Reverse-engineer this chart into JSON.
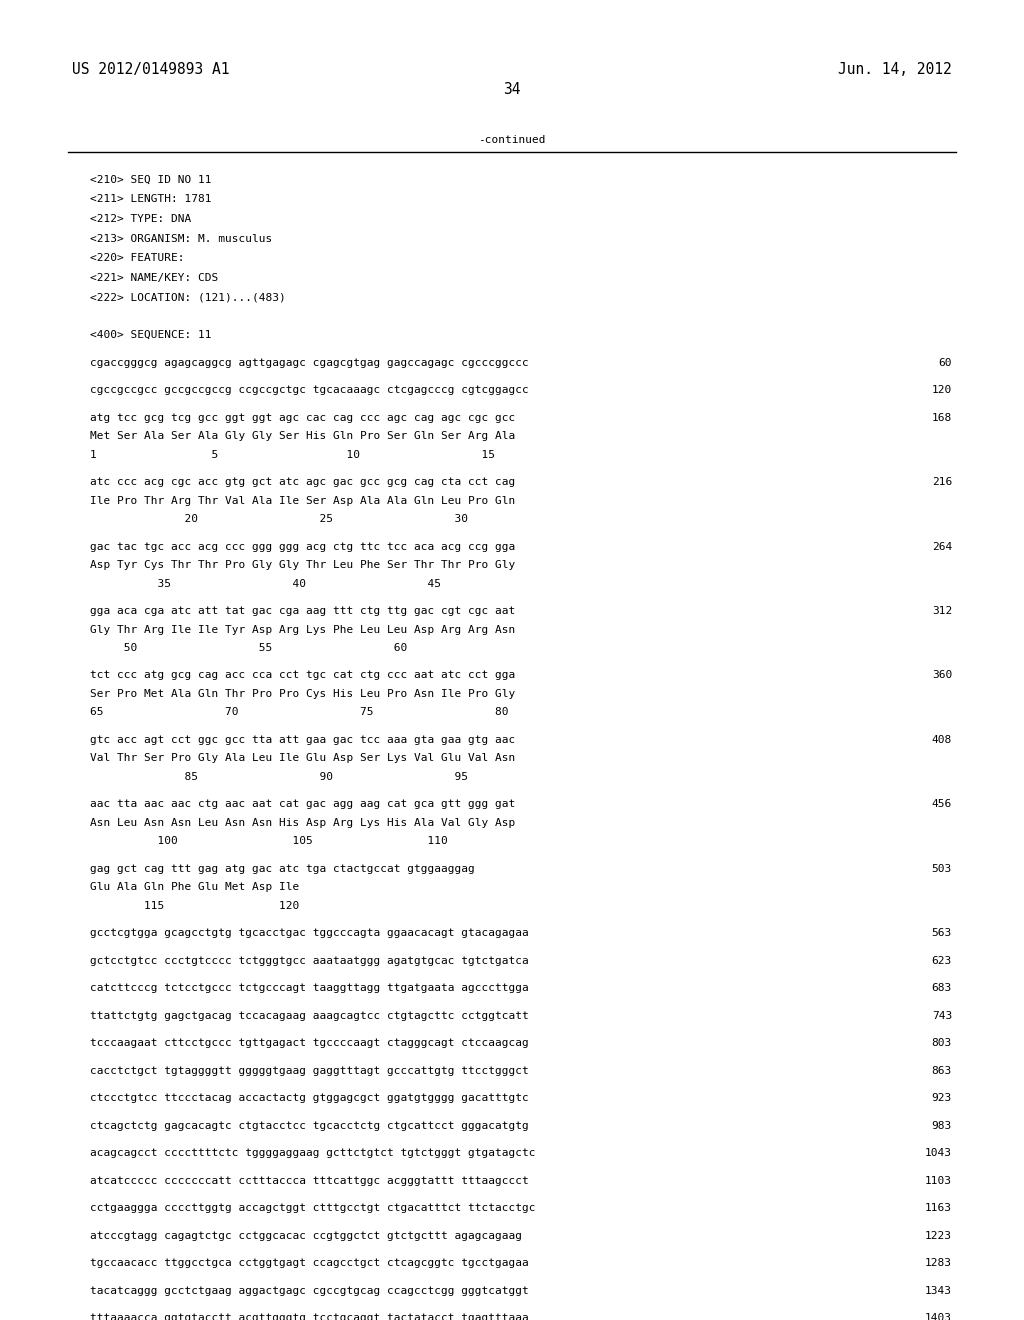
{
  "header_left": "US 2012/0149893 A1",
  "header_right": "Jun. 14, 2012",
  "page_number": "34",
  "continued_text": "-continued",
  "sequence_info": [
    "<210> SEQ ID NO 11",
    "<211> LENGTH: 1781",
    "<212> TYPE: DNA",
    "<213> ORGANISM: M. musculus",
    "<220> FEATURE:",
    "<221> NAME/KEY: CDS",
    "<222> LOCATION: (121)...(483)"
  ],
  "sequence_label": "<400> SEQUENCE: 11",
  "sequence_blocks": [
    {
      "dna": "cgaccgggcg agagcaggcg agttgagagc cgagcgtgag gagccagagc cgcccggccc",
      "num": "60",
      "aa": "",
      "pos": ""
    },
    {
      "dna": "cgccgccgcc gccgccgccg ccgccgctgc tgcacaaagc ctcgagcccg cgtcggagcc",
      "num": "120",
      "aa": "",
      "pos": ""
    },
    {
      "dna": "atg tcc gcg tcg gcc ggt ggt agc cac cag ccc agc cag agc cgc gcc",
      "num": "168",
      "aa": "Met Ser Ala Ser Ala Gly Gly Ser His Gln Pro Ser Gln Ser Arg Ala",
      "pos": "1                 5                   10                  15"
    },
    {
      "dna": "atc ccc acg cgc acc gtg gct atc agc gac gcc gcg cag cta cct cag",
      "num": "216",
      "aa": "Ile Pro Thr Arg Thr Val Ala Ile Ser Asp Ala Ala Gln Leu Pro Gln",
      "pos": "              20                  25                  30"
    },
    {
      "dna": "gac tac tgc acc acg ccc ggg ggg acg ctg ttc tcc aca acg ccg gga",
      "num": "264",
      "aa": "Asp Tyr Cys Thr Thr Pro Gly Gly Thr Leu Phe Ser Thr Thr Pro Gly",
      "pos": "          35                  40                  45"
    },
    {
      "dna": "gga aca cga atc att tat gac cga aag ttt ctg ttg gac cgt cgc aat",
      "num": "312",
      "aa": "Gly Thr Arg Ile Ile Tyr Asp Arg Lys Phe Leu Leu Asp Arg Arg Asn",
      "pos": "     50                  55                  60"
    },
    {
      "dna": "tct ccc atg gcg cag acc cca cct tgc cat ctg ccc aat atc cct gga",
      "num": "360",
      "aa": "Ser Pro Met Ala Gln Thr Pro Pro Cys His Leu Pro Asn Ile Pro Gly",
      "pos": "65                  70                  75                  80"
    },
    {
      "dna": "gtc acc agt cct ggc gcc tta att gaa gac tcc aaa gta gaa gtg aac",
      "num": "408",
      "aa": "Val Thr Ser Pro Gly Ala Leu Ile Glu Asp Ser Lys Val Glu Val Asn",
      "pos": "              85                  90                  95"
    },
    {
      "dna": "aac tta aac aac ctg aac aat cat gac agg aag cat gca gtt ggg gat",
      "num": "456",
      "aa": "Asn Leu Asn Asn Leu Asn Asn His Asp Arg Lys His Ala Val Gly Asp",
      "pos": "          100                 105                 110"
    },
    {
      "dna": "gag gct cag ttt gag atg gac atc tga ctactgccat gtggaaggag",
      "num": "503",
      "aa": "Glu Ala Gln Phe Glu Met Asp Ile",
      "pos": "        115                 120"
    },
    {
      "dna": "gcctcgtgga gcagcctgtg tgcacctgac tggcccagta ggaacacagt gtacagagaa",
      "num": "563",
      "aa": "",
      "pos": ""
    },
    {
      "dna": "gctcctgtcc ccctgtcccc tctgggtgcc aaataatggg agatgtgcac tgtctgatca",
      "num": "623",
      "aa": "",
      "pos": ""
    },
    {
      "dna": "catcttcccg tctcctgccc tctgcccagt taaggttagg ttgatgaata agcccttgga",
      "num": "683",
      "aa": "",
      "pos": ""
    },
    {
      "dna": "ttattctgtg gagctgacag tccacagaag aaagcagtcc ctgtagcttc cctggtcatt",
      "num": "743",
      "aa": "",
      "pos": ""
    },
    {
      "dna": "tcccaagaat cttcctgccc tgttgagact tgccccaagt ctagggcagt ctccaagcag",
      "num": "803",
      "aa": "",
      "pos": ""
    },
    {
      "dna": "cacctctgct tgtaggggtt gggggtgaag gaggtttagt gcccattgtg ttcctgggct",
      "num": "863",
      "aa": "",
      "pos": ""
    },
    {
      "dna": "ctccctgtcc ttccctacag accactactg gtggagcgct ggatgtgggg gacatttgtc",
      "num": "923",
      "aa": "",
      "pos": ""
    },
    {
      "dna": "ctcagctctg gagcacagtc ctgtacctcc tgcacctctg ctgcattcct gggacatgtg",
      "num": "983",
      "aa": "",
      "pos": ""
    },
    {
      "dna": "acagcagcct ccccttttctc tggggaggaag gcttctgtct tgtctgggt gtgatagctc",
      "num": "1043",
      "aa": "",
      "pos": ""
    },
    {
      "dna": "atcatccccc cccccccatt cctttaccca tttcattggc acgggtattt tttaagccct",
      "num": "1103",
      "aa": "",
      "pos": ""
    },
    {
      "dna": "cctgaaggga ccccttggtg accagctggt ctttgcctgt ctgacatttct ttctacctgc",
      "num": "1163",
      "aa": "",
      "pos": ""
    },
    {
      "dna": "atcccgtagg cagagtctgc cctggcacac ccgtggctct gtctgcttt agagcagaag",
      "num": "1223",
      "aa": "",
      "pos": ""
    },
    {
      "dna": "tgccaacacc ttggcctgca cctggtgagt ccagcctgct ctcagcggtc tgcctgagaa",
      "num": "1283",
      "aa": "",
      "pos": ""
    },
    {
      "dna": "tacatcaggg gcctctgaag aggactgagc cgccgtgcag ccagcctcgg gggtcatggt",
      "num": "1343",
      "aa": "",
      "pos": ""
    },
    {
      "dna": "tttaaaacca ggtgtacctt acgttgggtg tcctgcaggt tactatacct tgagtttaaa",
      "num": "1403",
      "aa": "",
      "pos": ""
    }
  ],
  "font_size_header": 10.5,
  "font_size_body": 8.0,
  "bg_color": "#ffffff",
  "text_color": "#000000"
}
